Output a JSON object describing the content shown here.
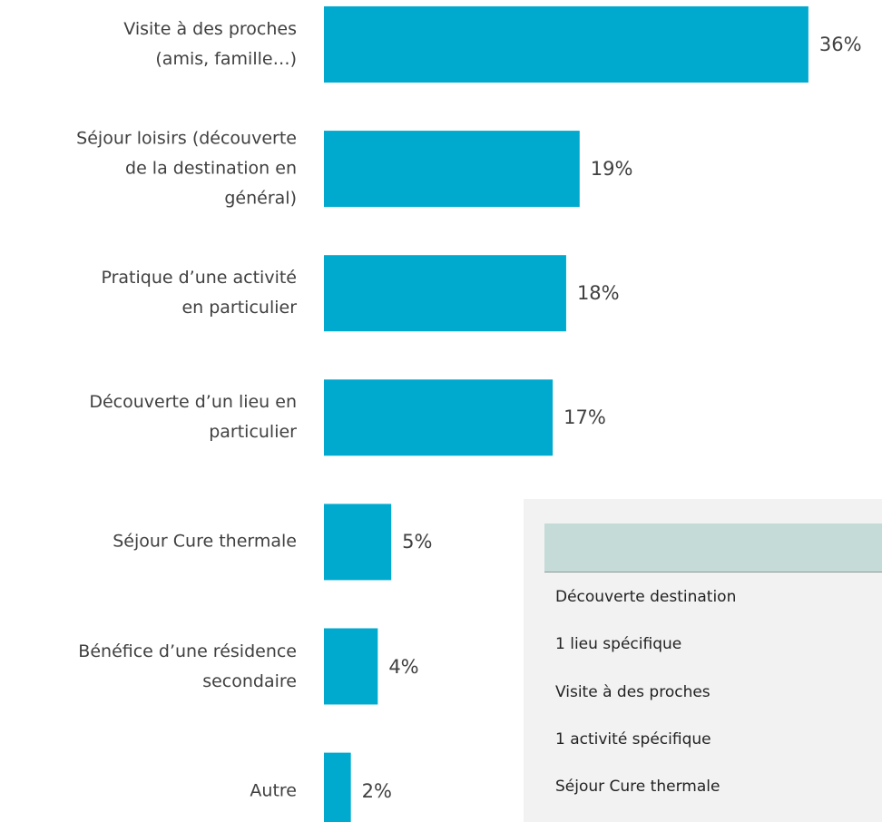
{
  "chart_data": {
    "type": "bar",
    "orientation": "horizontal",
    "color": "#00a9ce",
    "categories": [
      "Visite à des proches\n(amis, famille…)",
      "Séjour loisirs (découverte\nde la destination en\ngénéral)",
      "Pratique d’une activité\nen particulier",
      "Découverte d’un lieu en\nparticulier",
      "Séjour Cure thermale",
      "Bénéfice d’une résidence\nsecondaire",
      "Autre"
    ],
    "values": [
      36,
      19,
      18,
      17,
      5,
      4,
      2
    ],
    "value_labels": [
      "36%",
      "19%",
      "18%",
      "17%",
      "5%",
      "4%",
      "2%"
    ]
  },
  "table": {
    "rows": [
      "Découverte destination",
      "1 lieu spécifique",
      "Visite à des proches",
      "1 activité spécifique",
      "Séjour Cure thermale"
    ]
  }
}
